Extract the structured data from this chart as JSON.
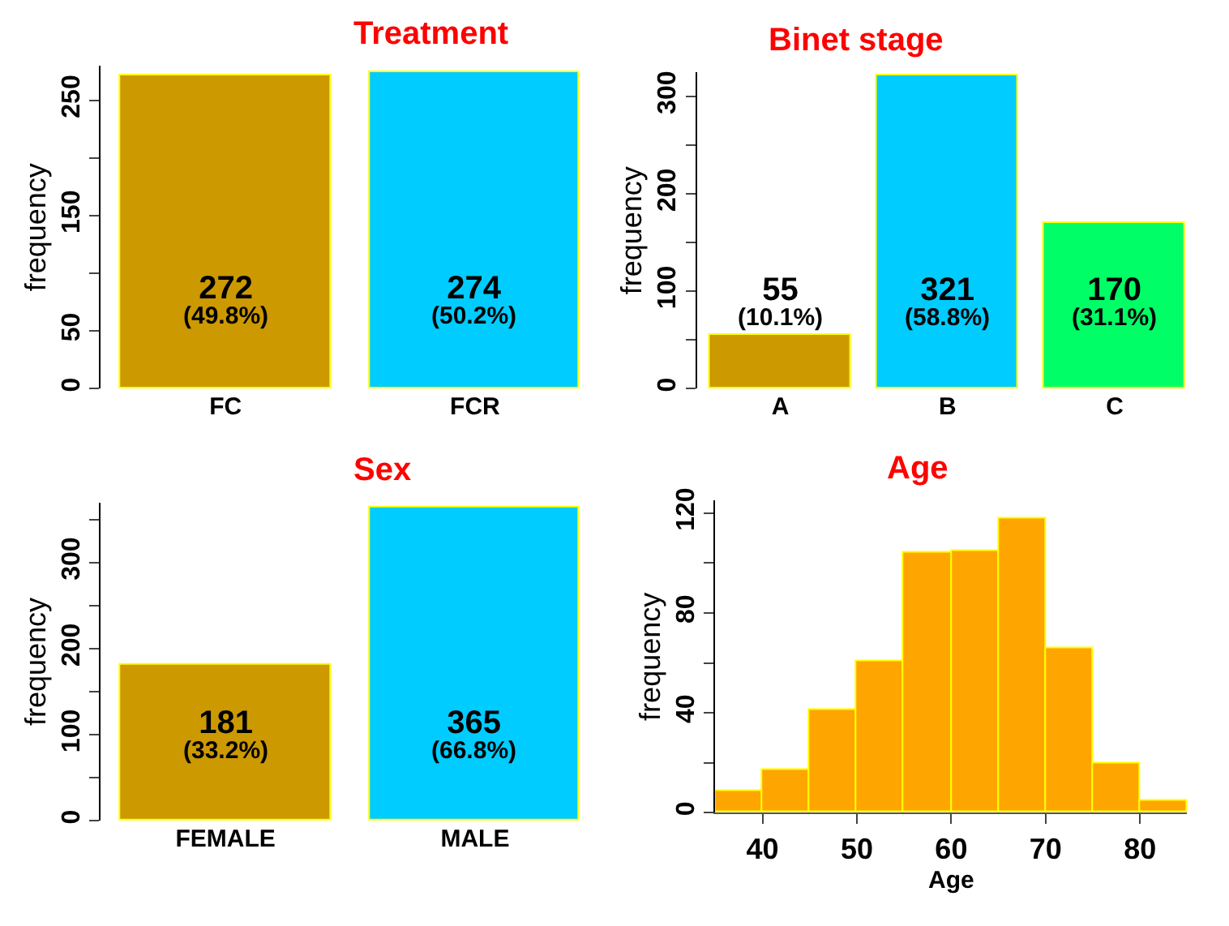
{
  "chart_data": [
    {
      "type": "bar",
      "title": "Treatment",
      "ylabel": "frequency",
      "categories": [
        "FC",
        "FCR"
      ],
      "values": [
        272,
        274
      ],
      "colors": [
        "#cc9900",
        "#00ccff"
      ],
      "value_labels": [
        "272\n(49.8%)",
        "274\n(50.2%)"
      ],
      "ylim": [
        0,
        280
      ],
      "yticks": [
        0,
        50,
        {
          "value": 100,
          "label": null
        },
        150,
        {
          "value": 200,
          "label": null
        },
        250
      ]
    },
    {
      "type": "bar",
      "title": "Binet stage",
      "ylabel": "frequency",
      "categories": [
        "A",
        "B",
        "C"
      ],
      "values": [
        55,
        321,
        170
      ],
      "colors": [
        "#cc9900",
        "#00ccff",
        "#00ff66"
      ],
      "value_labels": [
        "55\n(10.1%)",
        "321\n(58.8%)",
        "170\n(31.1%)"
      ],
      "ylim": [
        0,
        325
      ],
      "yticks": [
        0,
        {
          "value": 50,
          "label": null
        },
        100,
        {
          "value": 150,
          "label": null
        },
        200,
        {
          "value": 250,
          "label": null
        },
        300
      ]
    },
    {
      "type": "bar",
      "title": "Sex",
      "ylabel": "frequency",
      "categories": [
        "FEMALE",
        "MALE"
      ],
      "values": [
        181,
        365
      ],
      "colors": [
        "#cc9900",
        "#00ccff"
      ],
      "value_labels": [
        "181\n(33.2%)",
        "365\n(66.8%)"
      ],
      "ylim": [
        0,
        370
      ],
      "yticks": [
        0,
        {
          "value": 50,
          "label": null
        },
        100,
        {
          "value": 150,
          "label": null
        },
        200,
        {
          "value": 250,
          "label": null
        },
        300,
        {
          "value": 350,
          "label": null
        }
      ]
    },
    {
      "type": "histogram",
      "title": "Age",
      "xlabel": "Age",
      "ylabel": "frequency",
      "bins": [
        35,
        40,
        45,
        50,
        55,
        60,
        65,
        70,
        75,
        80,
        85
      ],
      "values": [
        9,
        17,
        41,
        61,
        104,
        105,
        118,
        66,
        20,
        5
      ],
      "color": "#ffa500",
      "xlim": [
        35,
        85
      ],
      "xticks": [
        40,
        50,
        60,
        70,
        80
      ],
      "ylim": [
        0,
        125
      ],
      "yticks": [
        0,
        {
          "value": 20,
          "label": null
        },
        40,
        {
          "value": 60,
          "label": null
        },
        80,
        {
          "value": 100,
          "label": null
        },
        120
      ]
    }
  ]
}
